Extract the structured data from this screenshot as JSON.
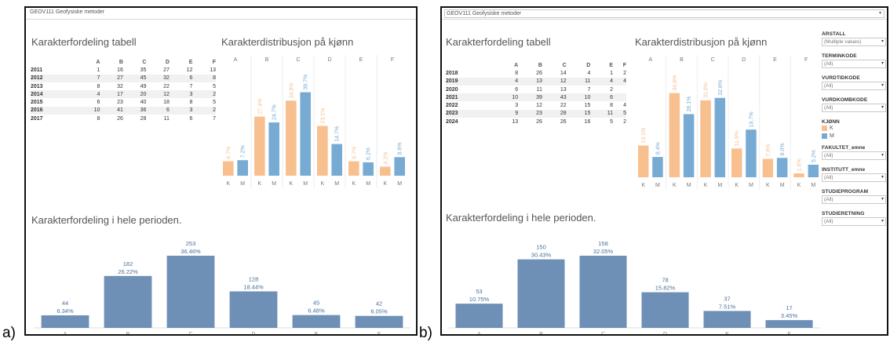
{
  "labels": [
    "a)",
    "b)"
  ],
  "colors": {
    "female": "#f8c08f",
    "male": "#78abd3",
    "overall": "#6e8fb6"
  },
  "panels": [
    {
      "window_title": "GEOV111 Geofysiske metoder",
      "table_title": "Karakterfordeling tabell",
      "table": {
        "columns": [
          "A",
          "B",
          "C",
          "D",
          "E",
          "F"
        ],
        "rows": [
          {
            "year": "2011",
            "values": [
              "1",
              "16",
              "35",
              "27",
              "12",
              "13"
            ]
          },
          {
            "year": "2012",
            "values": [
              "7",
              "27",
              "45",
              "32",
              "6",
              "8"
            ]
          },
          {
            "year": "2013",
            "values": [
              "8",
              "32",
              "49",
              "22",
              "7",
              "5"
            ]
          },
          {
            "year": "2014",
            "values": [
              "4",
              "17",
              "20",
              "12",
              "3",
              "2"
            ]
          },
          {
            "year": "2015",
            "values": [
              "6",
              "23",
              "40",
              "18",
              "8",
              "5"
            ]
          },
          {
            "year": "2016",
            "values": [
              "10",
              "41",
              "36",
              "6",
              "3",
              "2"
            ]
          },
          {
            "year": "2017",
            "values": [
              "8",
              "26",
              "28",
              "11",
              "6",
              "7"
            ]
          }
        ]
      },
      "gender_title": "Karakterdistribusjon på kjønn",
      "overall_title": "Karakterfordeling i hele perioden."
    },
    {
      "window_title": "GEOV111 Geofysiske metoder",
      "table_title": "Karakterfordeling tabell",
      "table": {
        "columns": [
          "A",
          "B",
          "C",
          "D",
          "E",
          "F"
        ],
        "rows": [
          {
            "year": "2018",
            "values": [
              "8",
              "26",
              "14",
              "4",
              "1",
              "2"
            ]
          },
          {
            "year": "2019",
            "values": [
              "4",
              "13",
              "12",
              "11",
              "4",
              "4"
            ]
          },
          {
            "year": "2020",
            "values": [
              "6",
              "11",
              "13",
              "7",
              "2",
              ""
            ]
          },
          {
            "year": "2021",
            "values": [
              "10",
              "39",
              "43",
              "10",
              "6",
              ""
            ]
          },
          {
            "year": "2022",
            "values": [
              "3",
              "12",
              "22",
              "15",
              "8",
              "4"
            ]
          },
          {
            "year": "2023",
            "values": [
              "9",
              "23",
              "28",
              "15",
              "11",
              "5"
            ]
          },
          {
            "year": "2024",
            "values": [
              "13",
              "26",
              "26",
              "16",
              "5",
              "2"
            ]
          }
        ]
      },
      "gender_title": "Karakterdistribusjon på kjønn",
      "overall_title": "Karakterfordeling i hele perioden.",
      "filters": [
        {
          "label": "ÅRSTALL",
          "value": "(Multiple values)"
        },
        {
          "label": "TERMINKODE",
          "value": "(All)"
        },
        {
          "label": "VURDTIDKODE",
          "value": "(All)"
        },
        {
          "label": "VURDKOMBKODE",
          "value": "(All)"
        },
        {
          "label": "FAKULTET_emne",
          "value": "(All)"
        },
        {
          "label": "INSTITUTT_emne",
          "value": "(All)"
        },
        {
          "label": "STUDIEPROGRAM",
          "value": "(All)"
        },
        {
          "label": "STUDIERETNING",
          "value": "(All)"
        }
      ],
      "legend": {
        "title": "KJØNN",
        "items": [
          "K",
          "M"
        ]
      }
    }
  ],
  "chart_data": [
    {
      "type": "bar",
      "title": "Karakterdistribusjon på kjønn",
      "categories": [
        "A",
        "B",
        "C",
        "D",
        "E",
        "F"
      ],
      "sub_categories": [
        "K",
        "M"
      ],
      "series": [
        {
          "name": "K",
          "values": [
            6.7,
            27.4,
            34.8,
            23.1,
            6.7,
            4.2
          ],
          "labels": [
            "6.7%",
            "27.4%",
            "34.8%",
            "23.1%",
            "6.7%",
            "4.2%"
          ]
        },
        {
          "name": "M",
          "values": [
            7.2,
            24.7,
            38.7,
            14.7,
            6.2,
            8.6
          ],
          "labels": [
            "7.2%",
            "24.7%",
            "38.7%",
            "14.7%",
            "6.2%",
            "8.6%"
          ]
        }
      ],
      "ylim": [
        0,
        40
      ]
    },
    {
      "type": "bar",
      "title": "Karakterfordeling i hele perioden.",
      "categories": [
        "A",
        "B",
        "C",
        "D",
        "E",
        "F"
      ],
      "values": [
        44,
        182,
        253,
        128,
        45,
        42
      ],
      "percents": [
        "6.34%",
        "26.22%",
        "36.46%",
        "18.44%",
        "6.48%",
        "6.05%"
      ],
      "ylim": [
        0,
        253
      ]
    },
    {
      "type": "bar",
      "title": "Karakterdistribusjon på kjønn",
      "categories": [
        "A",
        "B",
        "C",
        "D",
        "E",
        "F"
      ],
      "sub_categories": [
        "K",
        "M"
      ],
      "series": [
        {
          "name": "K",
          "values": [
            13.1,
            34.8,
            31.8,
            11.9,
            7.6,
            1.6
          ],
          "labels": [
            "13.1%",
            "34.8%",
            "31.8%",
            "11.9%",
            "7.6%",
            "1.6%"
          ]
        },
        {
          "name": "M",
          "values": [
            8.4,
            26.1,
            32.8,
            19.7,
            8.0,
            5.2
          ],
          "labels": [
            "8.4%",
            "26.1%",
            "32.8%",
            "19.7%",
            "8.0%",
            "5.2%"
          ]
        }
      ],
      "ylim": [
        0,
        35
      ]
    },
    {
      "type": "bar",
      "title": "Karakterfordeling i hele perioden.",
      "categories": [
        "A",
        "B",
        "C",
        "D",
        "E",
        "F"
      ],
      "values": [
        53,
        150,
        158,
        78,
        37,
        17
      ],
      "percents": [
        "10.75%",
        "30.43%",
        "32.05%",
        "15.82%",
        "7.51%",
        "3.45%"
      ],
      "ylim": [
        0,
        158
      ]
    }
  ]
}
